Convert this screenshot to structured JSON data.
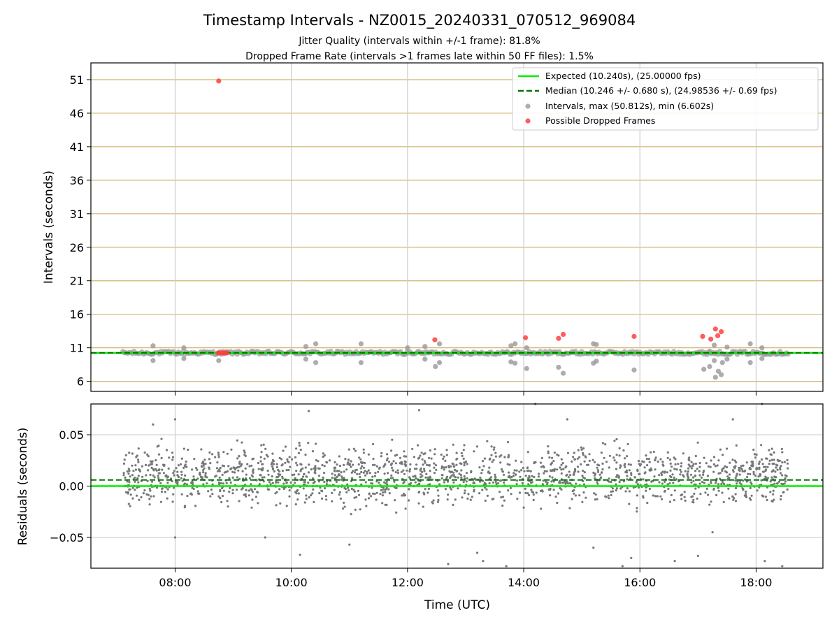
{
  "chart_data": {
    "title": "Timestamp Intervals - NZ0015_20240331_070512_969084",
    "subtitle_lines": [
      "Jitter Quality (intervals within +/-1 frame): 81.8%",
      "Dropped Frame Rate (intervals >1 frames late within 50 FF files): 1.5%"
    ],
    "xlabel": "Time (UTC)",
    "x_ticks": [
      "08:00",
      "10:00",
      "12:00",
      "14:00",
      "16:00",
      "18:00"
    ],
    "x_tick_hours": [
      8,
      10,
      12,
      14,
      16,
      18
    ],
    "xlim_hours": [
      6.55,
      19.15
    ],
    "top_panel": {
      "type": "scatter",
      "ylabel": "Intervals (seconds)",
      "ylim": [
        4.5,
        53.5
      ],
      "y_ticks": [
        6,
        11,
        16,
        21,
        26,
        31,
        36,
        41,
        46,
        51
      ],
      "grid": true,
      "grid_color": "#d4b373",
      "expected_seconds": 10.24,
      "median_seconds": 10.246,
      "expected_color": "#00ee00",
      "median_color": "#007700",
      "interval_color": "#999999",
      "dropped_color": "#ff4040",
      "legend_position": "top-right",
      "legend": [
        "Expected (10.240s), (25.00000 fps)",
        "Median (10.246 +/- 0.680 s), (24.98536 +/- 0.69 fps)",
        "Intervals, max (50.812s), min (6.602s)",
        "Possible Dropped Frames"
      ],
      "interval_outliers": [
        {
          "x": 7.62,
          "y": 11.3
        },
        {
          "x": 7.62,
          "y": 9.1
        },
        {
          "x": 8.15,
          "y": 11.0
        },
        {
          "x": 8.15,
          "y": 9.4
        },
        {
          "x": 8.75,
          "y": 9.1
        },
        {
          "x": 10.25,
          "y": 11.2
        },
        {
          "x": 10.25,
          "y": 9.3
        },
        {
          "x": 10.42,
          "y": 11.6
        },
        {
          "x": 10.42,
          "y": 8.8
        },
        {
          "x": 11.2,
          "y": 11.6
        },
        {
          "x": 11.2,
          "y": 8.8
        },
        {
          "x": 12.0,
          "y": 11.0
        },
        {
          "x": 12.3,
          "y": 11.2
        },
        {
          "x": 12.3,
          "y": 9.3
        },
        {
          "x": 12.48,
          "y": 8.2
        },
        {
          "x": 12.55,
          "y": 11.6
        },
        {
          "x": 12.55,
          "y": 8.8
        },
        {
          "x": 13.78,
          "y": 11.3
        },
        {
          "x": 13.78,
          "y": 8.9
        },
        {
          "x": 13.85,
          "y": 11.6
        },
        {
          "x": 13.85,
          "y": 8.7
        },
        {
          "x": 14.05,
          "y": 11.0
        },
        {
          "x": 14.05,
          "y": 7.9
        },
        {
          "x": 14.6,
          "y": 8.1
        },
        {
          "x": 14.68,
          "y": 7.2
        },
        {
          "x": 15.2,
          "y": 11.6
        },
        {
          "x": 15.2,
          "y": 8.7
        },
        {
          "x": 15.25,
          "y": 11.5
        },
        {
          "x": 15.25,
          "y": 9.0
        },
        {
          "x": 15.9,
          "y": 7.7
        },
        {
          "x": 17.1,
          "y": 7.8
        },
        {
          "x": 17.2,
          "y": 10.5
        },
        {
          "x": 17.2,
          "y": 8.2
        },
        {
          "x": 17.28,
          "y": 11.4
        },
        {
          "x": 17.28,
          "y": 9.1
        },
        {
          "x": 17.3,
          "y": 6.6
        },
        {
          "x": 17.35,
          "y": 7.5
        },
        {
          "x": 17.4,
          "y": 7.0
        },
        {
          "x": 17.42,
          "y": 8.8
        },
        {
          "x": 17.5,
          "y": 11.1
        },
        {
          "x": 17.5,
          "y": 9.3
        },
        {
          "x": 17.9,
          "y": 11.6
        },
        {
          "x": 17.9,
          "y": 8.8
        },
        {
          "x": 18.1,
          "y": 11.0
        },
        {
          "x": 18.1,
          "y": 9.4
        }
      ],
      "dropped_frames": [
        {
          "x": 8.75,
          "y": 50.8
        },
        {
          "x": 8.74,
          "y": 10.24
        },
        {
          "x": 8.77,
          "y": 10.24
        },
        {
          "x": 8.8,
          "y": 10.24
        },
        {
          "x": 8.83,
          "y": 10.24
        },
        {
          "x": 8.86,
          "y": 10.24
        },
        {
          "x": 8.89,
          "y": 10.24
        },
        {
          "x": 12.47,
          "y": 12.2
        },
        {
          "x": 14.03,
          "y": 12.5
        },
        {
          "x": 14.6,
          "y": 12.4
        },
        {
          "x": 14.68,
          "y": 13.0
        },
        {
          "x": 15.9,
          "y": 12.7
        },
        {
          "x": 17.08,
          "y": 12.7
        },
        {
          "x": 17.22,
          "y": 12.3
        },
        {
          "x": 17.3,
          "y": 13.8
        },
        {
          "x": 17.34,
          "y": 12.8
        },
        {
          "x": 17.4,
          "y": 13.4
        }
      ]
    },
    "bottom_panel": {
      "type": "scatter",
      "ylabel": "Residuals (seconds)",
      "ylim": [
        -0.08,
        0.08
      ],
      "y_ticks": [
        0.05,
        0.0,
        -0.05
      ],
      "y_tick_labels": [
        "0.05",
        "0.00",
        "−0.05"
      ],
      "grid": true,
      "grid_color": "#cccccc",
      "expected_residual": 0.0,
      "median_residual": 0.006,
      "point_color": "#777777",
      "x_range_hours": [
        7.1,
        18.55
      ],
      "residual_typical_range": [
        -0.03,
        0.05
      ],
      "sample_points": [
        {
          "x": 7.62,
          "y": 0.06
        },
        {
          "x": 8.0,
          "y": 0.065
        },
        {
          "x": 8.0,
          "y": -0.05
        },
        {
          "x": 9.55,
          "y": -0.05
        },
        {
          "x": 10.15,
          "y": -0.067
        },
        {
          "x": 10.3,
          "y": 0.073
        },
        {
          "x": 11.0,
          "y": -0.057
        },
        {
          "x": 12.2,
          "y": 0.074
        },
        {
          "x": 12.7,
          "y": -0.076
        },
        {
          "x": 13.2,
          "y": -0.065
        },
        {
          "x": 13.3,
          "y": -0.073
        },
        {
          "x": 13.7,
          "y": -0.078
        },
        {
          "x": 14.2,
          "y": 0.08
        },
        {
          "x": 14.75,
          "y": 0.065
        },
        {
          "x": 15.2,
          "y": -0.06
        },
        {
          "x": 15.7,
          "y": -0.078
        },
        {
          "x": 15.85,
          "y": -0.07
        },
        {
          "x": 16.6,
          "y": -0.073
        },
        {
          "x": 17.0,
          "y": -0.068
        },
        {
          "x": 17.25,
          "y": -0.045
        },
        {
          "x": 17.6,
          "y": 0.065
        },
        {
          "x": 18.1,
          "y": 0.08
        },
        {
          "x": 18.15,
          "y": -0.073
        },
        {
          "x": 18.45,
          "y": -0.078
        }
      ]
    }
  }
}
